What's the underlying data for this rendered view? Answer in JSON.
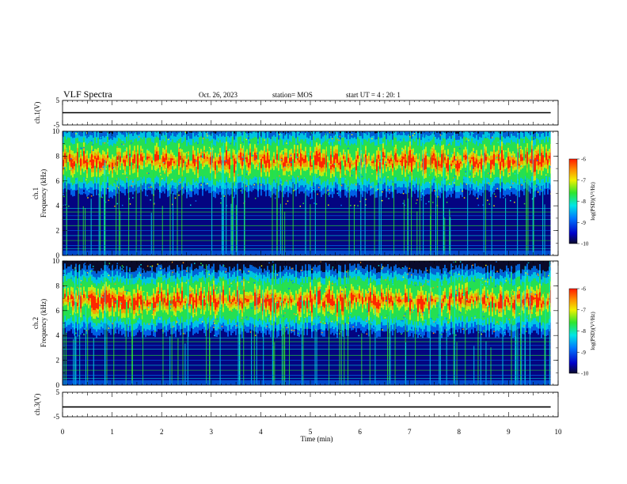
{
  "header": {
    "title": "VLF Spectra",
    "date": "Oct. 26, 2023",
    "station": "station= MOS",
    "start": "start  UT =   4 : 20: 1"
  },
  "colorscale": [
    "#0a0a2a",
    "#0000c8",
    "#0078ff",
    "#00e6e6",
    "#2ee62e",
    "#f0f000",
    "#ff9000",
    "#ff1a00"
  ],
  "chart_data": [
    {
      "type": "line",
      "name": "ch1-voltage",
      "ylabel": "ch.1(V)",
      "ylim": [
        -5,
        5
      ],
      "yticks": [
        5,
        -5
      ],
      "xlim": [
        0,
        10
      ],
      "series": [
        {
          "x": [
            0,
            9.85
          ],
          "y": [
            0,
            0
          ]
        }
      ]
    },
    {
      "type": "heatmap",
      "name": "ch1-spectrogram",
      "ylabel": "ch.1\nFrequency (kHz)",
      "ylim": [
        0,
        10
      ],
      "yticks": [
        0,
        2,
        4,
        6,
        8,
        10
      ],
      "xlim": [
        0,
        10
      ],
      "data_xmax": 9.85,
      "band_center_khz": 7.6,
      "colorbar": {
        "label": "log(PSD)(V²/Hz)",
        "ticks": [
          -6,
          -7,
          -8,
          -9,
          -10
        ],
        "range": [
          -10,
          -6
        ]
      }
    },
    {
      "type": "heatmap",
      "name": "ch2-spectrogram",
      "ylabel": "ch.2\nFrequency (kHz)",
      "ylim": [
        0,
        10
      ],
      "yticks": [
        0,
        2,
        4,
        6,
        8,
        10
      ],
      "xlim": [
        0,
        10
      ],
      "data_xmax": 9.85,
      "band_center_khz": 6.8,
      "colorbar": {
        "label": "log(PSD)(V²/Hz)",
        "ticks": [
          -6,
          -7,
          -8,
          -9,
          -10
        ],
        "range": [
          -10,
          -6
        ]
      }
    },
    {
      "type": "line",
      "name": "ch3-voltage",
      "ylabel": "ch.3(V)",
      "ylim": [
        -5,
        5
      ],
      "yticks": [
        5,
        -5
      ],
      "xlim": [
        0,
        10
      ],
      "series": [
        {
          "x": [
            0,
            9.85
          ],
          "y": [
            -1,
            -1
          ]
        }
      ]
    }
  ],
  "xaxis": {
    "label": "Time  (min)",
    "ticks": [
      0,
      1,
      2,
      3,
      4,
      5,
      6,
      7,
      8,
      9,
      10
    ]
  }
}
